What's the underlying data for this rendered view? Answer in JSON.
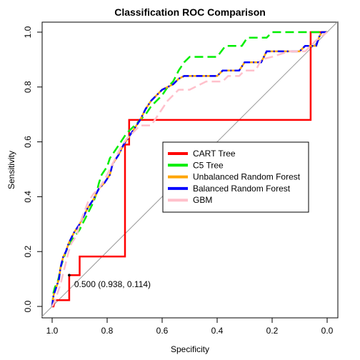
{
  "chart_data": {
    "type": "line",
    "title": "Classification ROC Comparison",
    "xlabel": "Specificity",
    "ylabel": "Sensitivity",
    "xlim": [
      1.0,
      0.0
    ],
    "ylim": [
      0.0,
      1.0
    ],
    "x_reversed": true,
    "xticks": [
      "1.0",
      "0.8",
      "0.6",
      "0.4",
      "0.2",
      "0.0"
    ],
    "yticks": [
      "0.0",
      "0.2",
      "0.4",
      "0.6",
      "0.8",
      "1.0"
    ],
    "grid": false,
    "legend_position": "right-center",
    "reference_line": {
      "from": [
        1.0,
        0.0
      ],
      "to": [
        0.0,
        1.0
      ],
      "color": "#999999"
    },
    "annotation": {
      "text": "0.500 (0.938, 0.114)",
      "point": [
        0.938,
        0.114
      ]
    },
    "series": [
      {
        "name": "CART Tree",
        "color": "#ff0000",
        "dash": "solid",
        "points": [
          [
            1.0,
            0.0
          ],
          [
            0.995,
            0.0
          ],
          [
            0.99,
            0.023
          ],
          [
            0.938,
            0.023
          ],
          [
            0.938,
            0.114
          ],
          [
            0.9,
            0.114
          ],
          [
            0.9,
            0.182
          ],
          [
            0.735,
            0.182
          ],
          [
            0.735,
            0.59
          ],
          [
            0.72,
            0.59
          ],
          [
            0.72,
            0.68
          ],
          [
            0.06,
            0.68
          ],
          [
            0.06,
            1.0
          ],
          [
            0.0,
            1.0
          ]
        ]
      },
      {
        "name": "C5 Tree",
        "color": "#00ee00",
        "dash": "dashed",
        "points": [
          [
            1.0,
            0.0
          ],
          [
            0.995,
            0.05
          ],
          [
            0.99,
            0.07
          ],
          [
            0.98,
            0.09
          ],
          [
            0.975,
            0.11
          ],
          [
            0.97,
            0.14
          ],
          [
            0.96,
            0.17
          ],
          [
            0.95,
            0.2
          ],
          [
            0.94,
            0.22
          ],
          [
            0.93,
            0.24
          ],
          [
            0.915,
            0.26
          ],
          [
            0.9,
            0.28
          ],
          [
            0.89,
            0.3
          ],
          [
            0.875,
            0.33
          ],
          [
            0.86,
            0.36
          ],
          [
            0.85,
            0.38
          ],
          [
            0.84,
            0.41
          ],
          [
            0.83,
            0.45
          ],
          [
            0.82,
            0.48
          ],
          [
            0.8,
            0.51
          ],
          [
            0.79,
            0.54
          ],
          [
            0.77,
            0.57
          ],
          [
            0.75,
            0.6
          ],
          [
            0.73,
            0.63
          ],
          [
            0.7,
            0.66
          ],
          [
            0.68,
            0.68
          ],
          [
            0.66,
            0.7
          ],
          [
            0.64,
            0.73
          ],
          [
            0.62,
            0.75
          ],
          [
            0.6,
            0.77
          ],
          [
            0.58,
            0.8
          ],
          [
            0.56,
            0.82
          ],
          [
            0.54,
            0.86
          ],
          [
            0.52,
            0.89
          ],
          [
            0.5,
            0.91
          ],
          [
            0.4,
            0.91
          ],
          [
            0.37,
            0.95
          ],
          [
            0.31,
            0.95
          ],
          [
            0.29,
            0.98
          ],
          [
            0.22,
            0.98
          ],
          [
            0.2,
            1.0
          ],
          [
            0.0,
            1.0
          ]
        ]
      },
      {
        "name": "Unbalanced Random Forest",
        "color": "#ffa500",
        "dash": "solid",
        "points": [
          [
            1.0,
            0.0
          ],
          [
            0.995,
            0.04
          ],
          [
            0.985,
            0.07
          ],
          [
            0.975,
            0.1
          ],
          [
            0.97,
            0.14
          ],
          [
            0.96,
            0.18
          ],
          [
            0.95,
            0.2
          ],
          [
            0.94,
            0.23
          ],
          [
            0.93,
            0.25
          ],
          [
            0.92,
            0.27
          ],
          [
            0.9,
            0.3
          ],
          [
            0.885,
            0.33
          ],
          [
            0.87,
            0.36
          ],
          [
            0.85,
            0.39
          ],
          [
            0.84,
            0.41
          ],
          [
            0.83,
            0.43
          ],
          [
            0.81,
            0.45
          ],
          [
            0.79,
            0.48
          ],
          [
            0.78,
            0.52
          ],
          [
            0.76,
            0.55
          ],
          [
            0.74,
            0.59
          ],
          [
            0.72,
            0.62
          ],
          [
            0.7,
            0.65
          ],
          [
            0.68,
            0.68
          ],
          [
            0.66,
            0.72
          ],
          [
            0.64,
            0.75
          ],
          [
            0.62,
            0.77
          ],
          [
            0.6,
            0.79
          ],
          [
            0.58,
            0.8
          ],
          [
            0.56,
            0.81
          ],
          [
            0.54,
            0.83
          ],
          [
            0.52,
            0.84
          ],
          [
            0.4,
            0.84
          ],
          [
            0.38,
            0.86
          ],
          [
            0.32,
            0.86
          ],
          [
            0.3,
            0.89
          ],
          [
            0.24,
            0.89
          ],
          [
            0.22,
            0.93
          ],
          [
            0.1,
            0.93
          ],
          [
            0.08,
            0.95
          ],
          [
            0.04,
            0.95
          ],
          [
            0.03,
            0.98
          ],
          [
            0.02,
            1.0
          ],
          [
            0.0,
            1.0
          ]
        ]
      },
      {
        "name": "Balanced Random Forest",
        "color": "#0000ff",
        "dash": "dashdot",
        "points": [
          [
            1.0,
            0.0
          ],
          [
            0.995,
            0.04
          ],
          [
            0.985,
            0.07
          ],
          [
            0.975,
            0.1
          ],
          [
            0.97,
            0.14
          ],
          [
            0.96,
            0.18
          ],
          [
            0.95,
            0.2
          ],
          [
            0.94,
            0.23
          ],
          [
            0.93,
            0.25
          ],
          [
            0.92,
            0.27
          ],
          [
            0.9,
            0.3
          ],
          [
            0.885,
            0.33
          ],
          [
            0.87,
            0.36
          ],
          [
            0.85,
            0.39
          ],
          [
            0.84,
            0.41
          ],
          [
            0.83,
            0.43
          ],
          [
            0.81,
            0.45
          ],
          [
            0.79,
            0.48
          ],
          [
            0.78,
            0.52
          ],
          [
            0.76,
            0.55
          ],
          [
            0.74,
            0.59
          ],
          [
            0.72,
            0.62
          ],
          [
            0.7,
            0.65
          ],
          [
            0.68,
            0.68
          ],
          [
            0.66,
            0.72
          ],
          [
            0.64,
            0.75
          ],
          [
            0.62,
            0.77
          ],
          [
            0.6,
            0.79
          ],
          [
            0.58,
            0.8
          ],
          [
            0.56,
            0.81
          ],
          [
            0.54,
            0.83
          ],
          [
            0.52,
            0.84
          ],
          [
            0.4,
            0.84
          ],
          [
            0.38,
            0.86
          ],
          [
            0.32,
            0.86
          ],
          [
            0.3,
            0.89
          ],
          [
            0.24,
            0.89
          ],
          [
            0.22,
            0.93
          ],
          [
            0.1,
            0.93
          ],
          [
            0.08,
            0.95
          ],
          [
            0.04,
            0.95
          ],
          [
            0.03,
            0.98
          ],
          [
            0.02,
            1.0
          ],
          [
            0.0,
            1.0
          ]
        ]
      },
      {
        "name": "GBM",
        "color": "#ffc0cb",
        "dash": "dashed",
        "points": [
          [
            1.0,
            0.0
          ],
          [
            0.99,
            0.02
          ],
          [
            0.98,
            0.05
          ],
          [
            0.97,
            0.08
          ],
          [
            0.96,
            0.12
          ],
          [
            0.95,
            0.16
          ],
          [
            0.94,
            0.2
          ],
          [
            0.93,
            0.23
          ],
          [
            0.91,
            0.26
          ],
          [
            0.9,
            0.3
          ],
          [
            0.885,
            0.34
          ],
          [
            0.87,
            0.38
          ],
          [
            0.85,
            0.41
          ],
          [
            0.83,
            0.43
          ],
          [
            0.81,
            0.46
          ],
          [
            0.79,
            0.5
          ],
          [
            0.77,
            0.54
          ],
          [
            0.75,
            0.58
          ],
          [
            0.73,
            0.61
          ],
          [
            0.7,
            0.64
          ],
          [
            0.68,
            0.66
          ],
          [
            0.64,
            0.66
          ],
          [
            0.62,
            0.69
          ],
          [
            0.6,
            0.72
          ],
          [
            0.58,
            0.75
          ],
          [
            0.56,
            0.77
          ],
          [
            0.54,
            0.79
          ],
          [
            0.5,
            0.79
          ],
          [
            0.48,
            0.8
          ],
          [
            0.44,
            0.82
          ],
          [
            0.38,
            0.82
          ],
          [
            0.36,
            0.84
          ],
          [
            0.32,
            0.84
          ],
          [
            0.3,
            0.86
          ],
          [
            0.26,
            0.86
          ],
          [
            0.24,
            0.9
          ],
          [
            0.2,
            0.91
          ],
          [
            0.14,
            0.93
          ],
          [
            0.08,
            0.93
          ],
          [
            0.06,
            0.95
          ],
          [
            0.04,
            0.97
          ],
          [
            0.0,
            1.0
          ]
        ]
      }
    ]
  }
}
